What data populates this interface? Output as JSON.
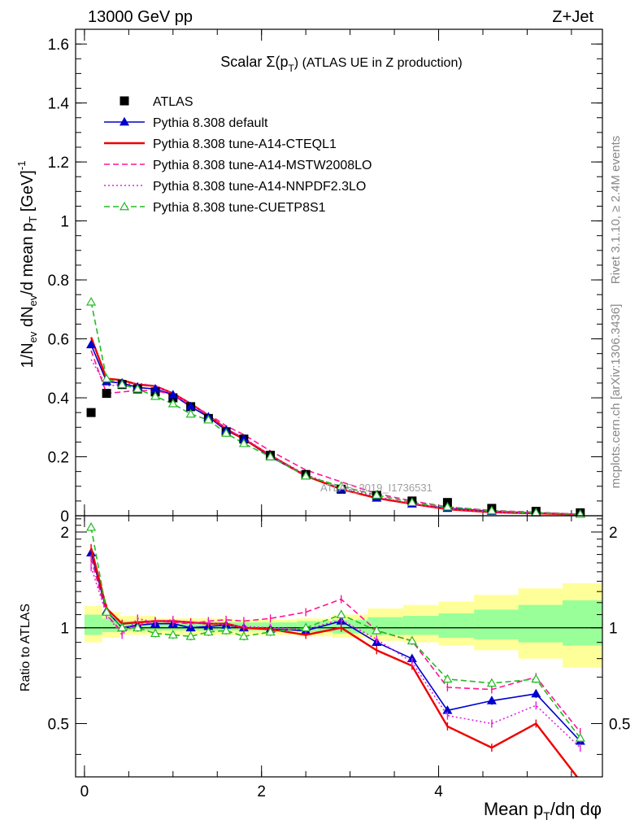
{
  "header": {
    "left": "13000 GeV pp",
    "right": "Z+Jet"
  },
  "side_labels": {
    "rivet": "Rivet 3.1.10, ≥ 2.4M events",
    "mcplots": "mcplots.cern.ch [arXiv:1306.3436]"
  },
  "watermark": "ATLAS_2019_I1736531",
  "chart_data": [
    {
      "type": "line",
      "panel": "main",
      "title": "Scalar Σ(p_T) (ATLAS UE in Z production)",
      "title_parts": {
        "pre": "Scalar Σ(p",
        "sub": "T",
        "post": ") (ATLAS UE in Z production)"
      },
      "xlabel": "Mean p_T/dη dφ",
      "xlabel_parts": {
        "pre": "Mean p",
        "sub": "T",
        "post": "/dη dφ"
      },
      "ylabel": "1/N_ev dN_ev/d mean p_T [GeV]^-1",
      "ylabel_parts": {
        "a": "1/N",
        "a_sub": "ev",
        "b": " dN",
        "b_sub": "ev",
        "c": "/d mean p",
        "c_sub": "T",
        "d": " [GeV]",
        "d_sup": "-1"
      },
      "xlim": [
        -0.1,
        5.85
      ],
      "ylim": [
        0,
        1.65
      ],
      "xticks": [
        0,
        2,
        4
      ],
      "yticks": [
        0,
        0.2,
        0.4,
        0.6,
        0.8,
        1,
        1.2,
        1.4,
        1.6
      ],
      "ytick_labels": [
        "0",
        "0.2",
        "0.4",
        "0.6",
        "0.8",
        "1",
        "1.2",
        "1.4",
        "1.6"
      ],
      "legend_position": "top-left",
      "x": [
        0.075,
        0.25,
        0.425,
        0.6,
        0.8,
        1.0,
        1.2,
        1.4,
        1.6,
        1.8,
        2.1,
        2.5,
        2.9,
        3.3,
        3.7,
        4.1,
        4.6,
        5.1,
        5.6
      ],
      "series": [
        {
          "name": "ATLAS",
          "color": "#000000",
          "style": "marker",
          "marker": "square",
          "values": [
            0.35,
            0.415,
            0.445,
            0.43,
            0.42,
            0.4,
            0.37,
            0.33,
            0.285,
            0.26,
            0.205,
            0.14,
            0.09,
            0.07,
            0.05,
            0.045,
            0.025,
            0.015,
            0.01
          ]
        },
        {
          "name": "Pythia 8.308 default",
          "color": "#0000cc",
          "style": "solid",
          "marker": "triangle-filled",
          "values": [
            0.58,
            0.455,
            0.45,
            0.435,
            0.43,
            0.41,
            0.37,
            0.335,
            0.29,
            0.26,
            0.2,
            0.135,
            0.09,
            0.06,
            0.04,
            0.025,
            0.015,
            0.01,
            0.005
          ]
        },
        {
          "name": "Pythia 8.308 tune-A14-CTEQL1",
          "color": "#ee0000",
          "style": "solid",
          "marker": "none",
          "values": [
            0.605,
            0.465,
            0.46,
            0.445,
            0.44,
            0.415,
            0.38,
            0.34,
            0.295,
            0.26,
            0.205,
            0.135,
            0.09,
            0.06,
            0.04,
            0.022,
            0.012,
            0.008,
            0.004
          ]
        },
        {
          "name": "Pythia 8.308 tune-A14-MSTW2008LO",
          "color": "#ff1493",
          "style": "dashed",
          "marker": "none",
          "values": [
            0.56,
            0.415,
            0.42,
            0.425,
            0.425,
            0.41,
            0.375,
            0.345,
            0.305,
            0.275,
            0.22,
            0.155,
            0.115,
            0.075,
            0.05,
            0.03,
            0.018,
            0.012,
            0.005
          ]
        },
        {
          "name": "Pythia 8.308 tune-A14-NNPDF2.3LO",
          "color": "#e020e0",
          "style": "dotted",
          "marker": "none",
          "values": [
            0.53,
            0.44,
            0.445,
            0.45,
            0.44,
            0.415,
            0.38,
            0.34,
            0.295,
            0.265,
            0.205,
            0.14,
            0.095,
            0.065,
            0.04,
            0.023,
            0.013,
            0.009,
            0.004
          ]
        },
        {
          "name": "Pythia 8.308 tune-CUETP8S1",
          "color": "#22bb22",
          "style": "dashed",
          "marker": "triangle-open",
          "values": [
            0.725,
            0.465,
            0.445,
            0.43,
            0.405,
            0.38,
            0.345,
            0.325,
            0.28,
            0.245,
            0.2,
            0.135,
            0.1,
            0.07,
            0.045,
            0.03,
            0.017,
            0.01,
            0.005
          ]
        }
      ]
    },
    {
      "type": "line",
      "panel": "ratio",
      "ylabel": "Ratio to ATLAS",
      "xlim": [
        -0.1,
        5.85
      ],
      "ylim": [
        0.34,
        2.25
      ],
      "yticks": [
        0.5,
        1,
        2
      ],
      "ytick_labels": [
        "0.5",
        "1",
        "2"
      ],
      "x": [
        0.075,
        0.25,
        0.425,
        0.6,
        0.8,
        1.0,
        1.2,
        1.4,
        1.6,
        1.8,
        2.1,
        2.5,
        2.9,
        3.3,
        3.7,
        4.1,
        4.6,
        5.1,
        5.6
      ],
      "bands": {
        "edges": [
          0.0,
          0.2,
          0.4,
          0.8,
          1.2,
          1.6,
          2.0,
          2.4,
          2.8,
          3.2,
          3.6,
          4.0,
          4.4,
          4.9,
          5.4,
          5.85
        ],
        "yellow_lo": [
          0.9,
          0.93,
          0.95,
          0.95,
          0.95,
          0.95,
          0.95,
          0.94,
          0.93,
          0.91,
          0.9,
          0.88,
          0.85,
          0.8,
          0.75
        ],
        "yellow_hi": [
          1.17,
          1.12,
          1.09,
          1.07,
          1.07,
          1.06,
          1.06,
          1.07,
          1.1,
          1.15,
          1.18,
          1.21,
          1.27,
          1.33,
          1.38
        ],
        "green_lo": [
          0.95,
          0.97,
          0.98,
          0.98,
          0.98,
          0.98,
          0.98,
          0.97,
          0.96,
          0.95,
          0.95,
          0.93,
          0.92,
          0.9,
          0.88
        ],
        "green_hi": [
          1.1,
          1.07,
          1.05,
          1.04,
          1.04,
          1.04,
          1.04,
          1.05,
          1.06,
          1.08,
          1.09,
          1.11,
          1.14,
          1.18,
          1.22
        ],
        "colors": {
          "yellow": "#ffff99",
          "green": "#99ff99"
        }
      },
      "series": [
        {
          "name": "Pythia 8.308 default",
          "color": "#0000cc",
          "style": "solid",
          "marker": "triangle-filled",
          "values": [
            1.72,
            1.13,
            1.0,
            1.02,
            1.03,
            1.03,
            1.0,
            1.01,
            1.02,
            1.0,
            0.99,
            0.98,
            1.05,
            0.9,
            0.8,
            0.55,
            0.59,
            0.62,
            0.44
          ]
        },
        {
          "name": "Pythia 8.308 tune-A14-CTEQL1",
          "color": "#ee0000",
          "style": "solid",
          "marker": "none",
          "values": [
            1.78,
            1.15,
            1.03,
            1.04,
            1.05,
            1.05,
            1.04,
            1.03,
            1.03,
            1.0,
            0.99,
            0.95,
            1.0,
            0.85,
            0.76,
            0.49,
            0.42,
            0.5,
            0.33
          ]
        },
        {
          "name": "Pythia 8.308 tune-A14-MSTW2008LO",
          "color": "#ff1493",
          "style": "dashed",
          "marker": "none",
          "values": [
            1.65,
            1.1,
            0.97,
            1.02,
            1.05,
            1.04,
            1.03,
            1.05,
            1.06,
            1.05,
            1.07,
            1.12,
            1.23,
            0.98,
            0.91,
            0.65,
            0.64,
            0.7,
            0.47
          ]
        },
        {
          "name": "Pythia 8.308 tune-A14-NNPDF2.3LO",
          "color": "#e020e0",
          "style": "dotted",
          "marker": "none",
          "values": [
            1.55,
            1.1,
            0.95,
            1.07,
            1.04,
            1.06,
            1.03,
            1.04,
            1.02,
            1.01,
            1.0,
            0.99,
            1.06,
            0.92,
            0.78,
            0.53,
            0.5,
            0.57,
            0.42
          ]
        },
        {
          "name": "Pythia 8.308 tune-CUETP8S1",
          "color": "#22bb22",
          "style": "dashed",
          "marker": "triangle-open",
          "values": [
            2.07,
            1.12,
            1.0,
            1.0,
            0.96,
            0.95,
            0.94,
            0.97,
            0.98,
            0.94,
            0.97,
            1.0,
            1.1,
            0.98,
            0.91,
            0.69,
            0.67,
            0.69,
            0.45
          ]
        }
      ]
    }
  ]
}
